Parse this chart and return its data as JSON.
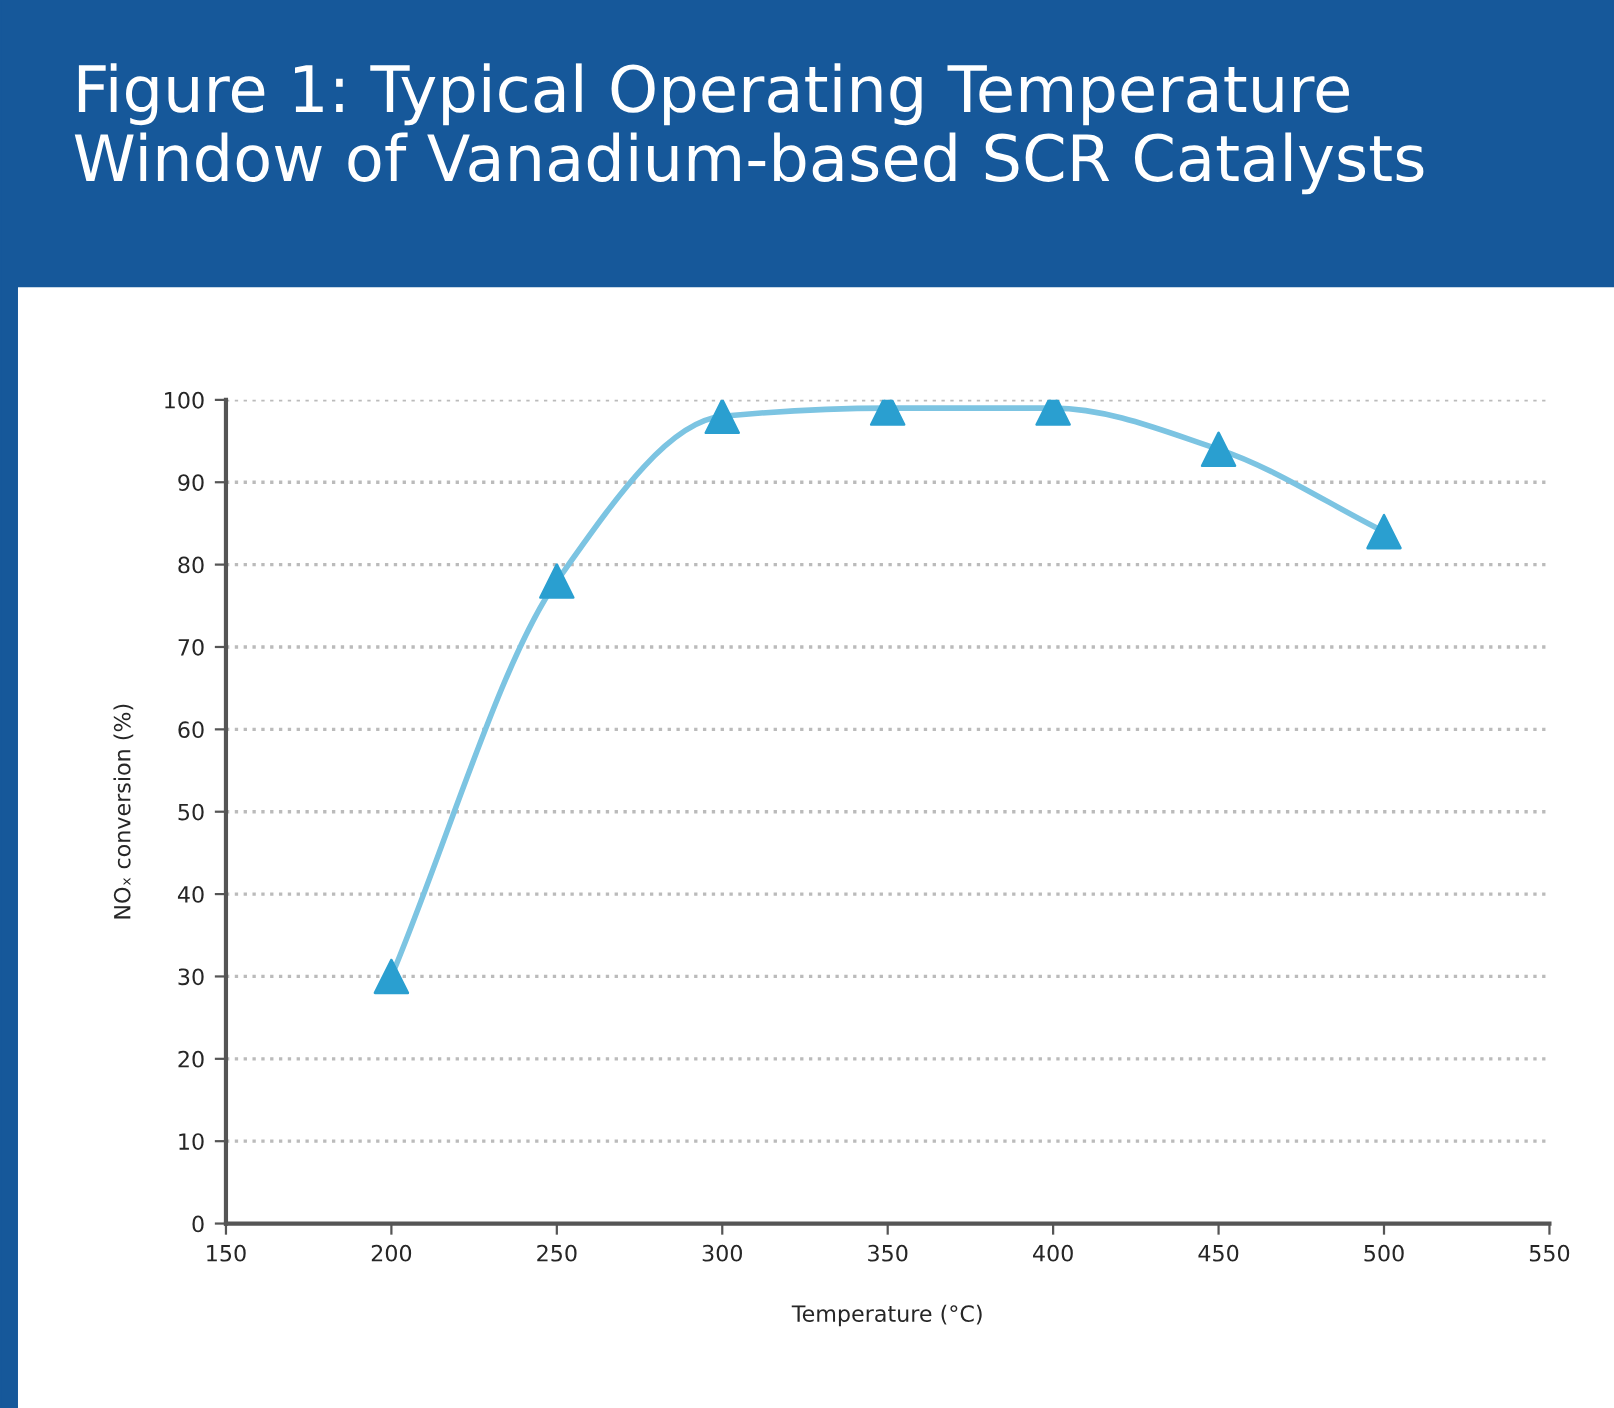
{
  "chart_data": {
    "type": "line",
    "title": "Figure 1: Typical Operating Temperature\nWindow of Vanadium-based SCR Catalysts",
    "xlabel": "Temperature (°C)",
    "ylabel": "NOₓ conversion (%)",
    "x": [
      200,
      250,
      300,
      350,
      400,
      450,
      500
    ],
    "series": [
      {
        "color": "#2a9fd0",
        "values": [
          30,
          78,
          98,
          99,
          99,
          94,
          84
        ]
      }
    ],
    "xlim": [
      150,
      550
    ],
    "xticks": [
      150,
      200,
      250,
      300,
      350,
      400,
      450,
      500,
      550
    ],
    "ylim": [
      0,
      100
    ],
    "yticks": [
      0,
      10,
      20,
      30,
      40,
      50,
      60,
      70,
      80,
      90,
      100
    ],
    "grid": "y",
    "marker": "triangle",
    "line_style": "solid"
  }
}
